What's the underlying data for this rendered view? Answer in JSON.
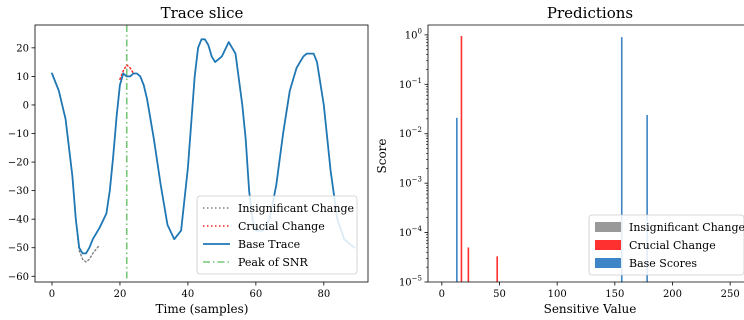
{
  "chart_data": [
    {
      "type": "line",
      "title": "Trace slice",
      "xlabel": "Time (samples)",
      "ylabel": "",
      "xlim": [
        -5,
        93
      ],
      "ylim": [
        -62,
        28
      ],
      "xticks": [
        0,
        20,
        40,
        60,
        80
      ],
      "yticks": [
        -60,
        -50,
        -40,
        -30,
        -20,
        -10,
        0,
        10,
        20
      ],
      "grid": false,
      "legend_position": "lower-right",
      "series": [
        {
          "name": "Insignificant Change",
          "style": "dotted",
          "color": "#808080",
          "x": [
            0,
            2,
            4,
            6,
            7,
            8,
            9,
            10,
            11,
            12,
            14
          ],
          "y": [
            11,
            5,
            -5,
            -25,
            -40,
            -51,
            -54,
            -55,
            -54,
            -52,
            -49
          ]
        },
        {
          "name": "Crucial Change",
          "style": "dotted",
          "color": "#ff2020",
          "x": [
            20,
            21,
            22,
            23,
            24
          ],
          "y": [
            9,
            12,
            14,
            13,
            11
          ]
        },
        {
          "name": "Base Trace",
          "style": "solid",
          "color": "#1f77b4",
          "x": [
            0,
            2,
            4,
            6,
            7,
            8,
            9,
            10,
            11,
            12,
            14,
            16,
            17,
            18,
            19,
            20,
            21,
            22,
            23,
            24,
            25,
            26,
            27,
            28,
            30,
            32,
            34,
            36,
            38,
            40,
            42,
            43,
            44,
            45,
            46,
            47,
            48,
            50,
            52,
            54,
            56,
            57,
            58,
            59,
            60,
            62,
            64,
            66,
            68,
            70,
            72,
            74,
            75,
            76,
            77,
            78,
            80,
            82,
            84,
            86,
            88,
            89
          ],
          "y": [
            11,
            5,
            -5,
            -25,
            -40,
            -50,
            -52,
            -52,
            -50,
            -47,
            -43,
            -38,
            -30,
            -18,
            -4,
            7,
            11,
            10,
            10,
            11,
            11,
            10,
            7,
            2,
            -12,
            -28,
            -42,
            -47,
            -44,
            -22,
            10,
            20,
            23,
            23,
            21,
            17,
            15,
            17,
            22,
            18,
            0,
            -12,
            -30,
            -40,
            -44,
            -44,
            -40,
            -28,
            -10,
            5,
            13,
            17,
            18,
            18,
            18,
            15,
            0,
            -23,
            -40,
            -47,
            -49,
            -50
          ]
        },
        {
          "name": "Peak of SNR",
          "style": "dashdot",
          "color": "#77c777",
          "vertical_x": 22
        }
      ]
    },
    {
      "type": "bar",
      "title": "Predictions",
      "xlabel": "Sensitive Value",
      "ylabel": "Score",
      "xlim": [
        -12,
        262
      ],
      "ylim_log10": [
        -5,
        0.2
      ],
      "yscale": "log",
      "xticks": [
        0,
        50,
        100,
        150,
        200,
        250
      ],
      "yticks": [
        {
          "base": "10",
          "exp": "0",
          "value": 1
        },
        {
          "base": "10",
          "exp": "−1",
          "value": 0.1
        },
        {
          "base": "10",
          "exp": "−2",
          "value": 0.01
        },
        {
          "base": "10",
          "exp": "−3",
          "value": 0.001
        },
        {
          "base": "10",
          "exp": "−4",
          "value": 0.0001
        },
        {
          "base": "10",
          "exp": "−5",
          "value": 1e-05
        }
      ],
      "grid": false,
      "legend_position": "lower-right",
      "series": [
        {
          "name": "Insignificant Change",
          "color": "#999999",
          "x": [],
          "values": []
        },
        {
          "name": "Crucial Change",
          "color": "#ff3030",
          "x": [
            17,
            23,
            48
          ],
          "values": [
            0.95,
            5e-05,
            3.3e-05
          ]
        },
        {
          "name": "Base Scores",
          "color": "#3d85c6",
          "x": [
            13,
            156,
            178
          ],
          "values": [
            0.021,
            0.9,
            0.024
          ]
        }
      ]
    }
  ]
}
